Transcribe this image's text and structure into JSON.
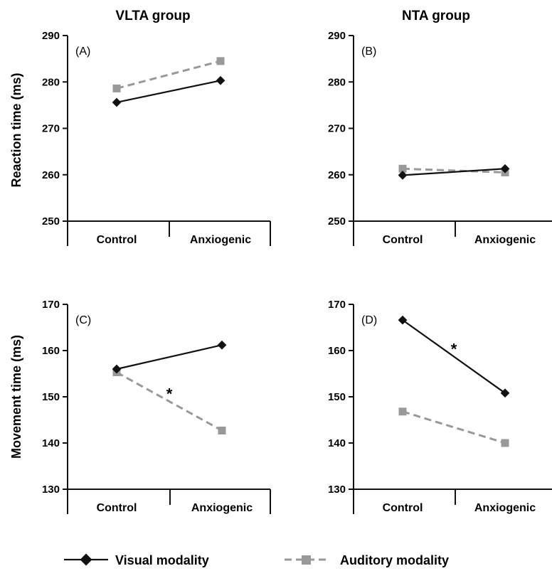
{
  "column_titles": [
    "VLTA group",
    "NTA group"
  ],
  "y_axis_labels": [
    "Reaction time (ms)",
    "Movement  time (ms)"
  ],
  "legend": {
    "visual": "Visual modality",
    "auditory": "Auditory modality"
  },
  "colors": {
    "visual": "#111111",
    "auditory": "#999999",
    "axis": "#111111"
  },
  "chart_data": [
    {
      "type": "line",
      "panel": "(A)",
      "categories": [
        "Control",
        "Anxiogenic"
      ],
      "ylim": [
        250,
        290
      ],
      "yticks": [
        250,
        260,
        270,
        280,
        290
      ],
      "series": [
        {
          "name": "Visual modality",
          "values": [
            275.6,
            280.3
          ]
        },
        {
          "name": "Auditory modality",
          "values": [
            278.6,
            284.5
          ]
        }
      ],
      "annotations": []
    },
    {
      "type": "line",
      "panel": "(B)",
      "categories": [
        "Control",
        "Anxiogenic"
      ],
      "ylim": [
        250,
        290
      ],
      "yticks": [
        250,
        260,
        270,
        280,
        290
      ],
      "series": [
        {
          "name": "Visual modality",
          "values": [
            259.9,
            261.3
          ]
        },
        {
          "name": "Auditory modality",
          "values": [
            261.3,
            260.5
          ]
        }
      ],
      "annotations": []
    },
    {
      "type": "line",
      "panel": "(C)",
      "categories": [
        "Control",
        "Anxiogenic"
      ],
      "ylim": [
        130,
        170
      ],
      "yticks": [
        130,
        140,
        150,
        160,
        170
      ],
      "series": [
        {
          "name": "Visual modality",
          "values": [
            156.0,
            161.2
          ]
        },
        {
          "name": "Auditory modality",
          "values": [
            155.3,
            142.7
          ]
        }
      ],
      "annotations": [
        {
          "text": "*",
          "series": "Auditory modality"
        }
      ]
    },
    {
      "type": "line",
      "panel": "(D)",
      "categories": [
        "Control",
        "Anxiogenic"
      ],
      "ylim": [
        130,
        170
      ],
      "yticks": [
        130,
        140,
        150,
        160,
        170
      ],
      "series": [
        {
          "name": "Visual modality",
          "values": [
            166.6,
            150.8
          ]
        },
        {
          "name": "Auditory modality",
          "values": [
            146.8,
            140.0
          ]
        }
      ],
      "annotations": [
        {
          "text": "*",
          "series": "Visual modality"
        }
      ]
    }
  ]
}
